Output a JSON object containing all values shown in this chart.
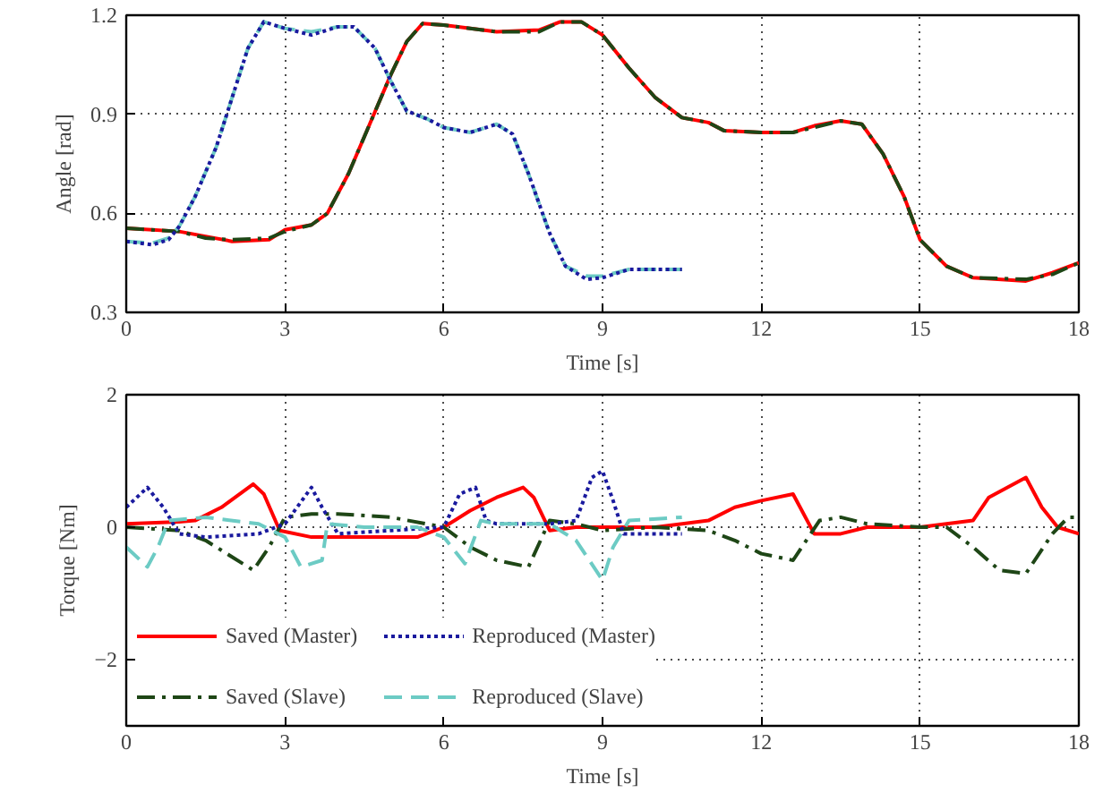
{
  "chart_data": [
    {
      "type": "line",
      "xlabel": "Time [s]",
      "ylabel": "Angle [rad]",
      "xlim": [
        0,
        18
      ],
      "ylim": [
        0.3,
        1.2
      ],
      "xticks": [
        0,
        3,
        6,
        9,
        12,
        15,
        18
      ],
      "yticks": [
        0.3,
        0.6,
        0.9,
        1.2
      ],
      "grid": true,
      "legend": false,
      "series": [
        {
          "color": "#ff0000",
          "line_style": "solid",
          "x": [
            0,
            1,
            1.5,
            2,
            2.7,
            3,
            3.5,
            3.8,
            4.2,
            4.6,
            5,
            5.3,
            5.6,
            6,
            7,
            7.8,
            8.2,
            8.6,
            9,
            9.5,
            10,
            10.5,
            11,
            11.3,
            12,
            12.6,
            13,
            13.5,
            13.9,
            14.3,
            14.7,
            15,
            15.5,
            16,
            17,
            17.5,
            18
          ],
          "values": [
            0.555,
            0.545,
            0.53,
            0.515,
            0.52,
            0.55,
            0.565,
            0.6,
            0.72,
            0.87,
            1.02,
            1.12,
            1.175,
            1.17,
            1.15,
            1.155,
            1.18,
            1.18,
            1.14,
            1.04,
            0.95,
            0.89,
            0.875,
            0.85,
            0.845,
            0.845,
            0.865,
            0.88,
            0.87,
            0.78,
            0.65,
            0.52,
            0.44,
            0.405,
            0.395,
            0.42,
            0.45
          ]
        },
        {
          "color": "#1e4616",
          "line_style": "dashdot",
          "x": [
            0,
            1,
            1.5,
            2,
            2.7,
            3,
            3.5,
            3.8,
            4.2,
            4.6,
            5,
            5.3,
            5.6,
            6,
            7,
            7.8,
            8.2,
            8.6,
            9,
            9.5,
            10,
            10.5,
            11,
            11.3,
            12,
            12.6,
            13,
            13.5,
            13.9,
            14.3,
            14.7,
            15,
            15.5,
            16,
            17,
            17.5,
            18
          ],
          "values": [
            0.555,
            0.545,
            0.525,
            0.52,
            0.525,
            0.545,
            0.565,
            0.6,
            0.72,
            0.87,
            1.02,
            1.12,
            1.175,
            1.17,
            1.15,
            1.15,
            1.18,
            1.18,
            1.14,
            1.04,
            0.95,
            0.89,
            0.875,
            0.85,
            0.845,
            0.845,
            0.86,
            0.88,
            0.87,
            0.78,
            0.65,
            0.52,
            0.44,
            0.405,
            0.4,
            0.415,
            0.45
          ]
        },
        {
          "color": "#6ccbc4",
          "line_style": "dashed",
          "x": [
            0,
            0.5,
            0.8,
            1,
            1.3,
            1.7,
            2,
            2.3,
            2.6,
            3,
            3.5,
            4,
            4.3,
            4.7,
            5,
            5.3,
            5.7,
            6,
            6.5,
            7,
            7.3,
            7.6,
            8,
            8.3,
            8.7,
            9,
            9.5,
            10,
            10.5
          ],
          "values": [
            0.515,
            0.51,
            0.525,
            0.56,
            0.65,
            0.8,
            0.95,
            1.1,
            1.18,
            1.16,
            1.15,
            1.165,
            1.165,
            1.1,
            1.0,
            0.91,
            0.885,
            0.86,
            0.845,
            0.87,
            0.84,
            0.72,
            0.54,
            0.44,
            0.41,
            0.41,
            0.43,
            0.43,
            0.43
          ]
        },
        {
          "color": "#1a1a9e",
          "line_style": "dotted",
          "x": [
            0,
            0.5,
            0.8,
            1,
            1.3,
            1.7,
            2,
            2.3,
            2.6,
            3,
            3.5,
            4,
            4.3,
            4.7,
            5,
            5.3,
            5.7,
            6,
            6.5,
            7,
            7.3,
            7.6,
            8,
            8.3,
            8.7,
            9,
            9.5,
            10,
            10.5
          ],
          "values": [
            0.515,
            0.505,
            0.52,
            0.56,
            0.65,
            0.8,
            0.95,
            1.1,
            1.18,
            1.16,
            1.14,
            1.165,
            1.165,
            1.1,
            1.0,
            0.91,
            0.885,
            0.86,
            0.845,
            0.87,
            0.84,
            0.72,
            0.54,
            0.44,
            0.4,
            0.405,
            0.43,
            0.43,
            0.43
          ]
        }
      ]
    },
    {
      "type": "line",
      "xlabel": "Time [s]",
      "ylabel": "Torque [Nm]",
      "xlim": [
        0,
        18
      ],
      "ylim": [
        -3,
        2
      ],
      "xticks": [
        0,
        3,
        6,
        9,
        12,
        15,
        18
      ],
      "yticks": [
        -2,
        0,
        2
      ],
      "grid": true,
      "legend": "bottom left",
      "series": [
        {
          "name": "Saved (Master)",
          "color": "#ff0000",
          "line_style": "solid",
          "x": [
            0,
            1,
            1.3,
            1.8,
            2.4,
            2.6,
            2.9,
            3.5,
            4.5,
            5.5,
            6,
            6.5,
            7,
            7.5,
            7.7,
            8,
            8.5,
            9,
            10,
            11,
            11.5,
            12,
            12.6,
            13,
            13.5,
            14,
            15,
            15.5,
            16,
            16.3,
            17,
            17.3,
            17.6,
            18
          ],
          "values": [
            0.05,
            0.08,
            0.1,
            0.3,
            0.65,
            0.5,
            -0.05,
            -0.15,
            -0.15,
            -0.15,
            0,
            0.25,
            0.45,
            0.6,
            0.45,
            -0.05,
            0,
            0,
            0,
            0.1,
            0.3,
            0.4,
            0.5,
            -0.1,
            -0.1,
            0,
            0,
            0.05,
            0.1,
            0.45,
            0.75,
            0.3,
            0,
            -0.1
          ]
        },
        {
          "name": "Saved (Slave)",
          "color": "#1e4616",
          "line_style": "dashdot",
          "x": [
            0,
            1,
            1.5,
            2.4,
            2.7,
            3,
            3.5,
            4,
            5,
            6,
            6.5,
            7,
            7.6,
            8,
            8.5,
            9,
            10,
            11,
            11.5,
            12,
            12.6,
            13.1,
            13.5,
            14,
            15,
            15.5,
            16,
            16.5,
            17,
            17.5,
            17.8,
            18
          ],
          "values": [
            0,
            -0.05,
            -0.2,
            -0.65,
            -0.3,
            0.15,
            0.2,
            0.2,
            0.15,
            0,
            -0.3,
            -0.5,
            -0.6,
            0.1,
            0.05,
            -0.05,
            0,
            -0.05,
            -0.2,
            -0.4,
            -0.5,
            0.1,
            0.15,
            0.05,
            0,
            0,
            -0.3,
            -0.65,
            -0.7,
            -0.1,
            0.15,
            0.15
          ]
        },
        {
          "name": "Reproduced (Master)",
          "color": "#1a1a9e",
          "line_style": "dotted",
          "x": [
            0,
            0.4,
            0.7,
            1,
            1.5,
            2.5,
            3,
            3.5,
            3.7,
            4,
            5,
            6,
            6.3,
            6.6,
            6.8,
            7,
            8,
            8.5,
            8.8,
            9,
            9.2,
            9.4,
            10.5
          ],
          "values": [
            0.3,
            0.6,
            0.3,
            -0.1,
            -0.15,
            -0.1,
            0.05,
            0.6,
            0.3,
            -0.1,
            -0.05,
            0,
            0.5,
            0.6,
            0.1,
            0.05,
            0.05,
            0.1,
            0.75,
            0.85,
            0.4,
            -0.1,
            -0.1
          ]
        },
        {
          "name": "Reproduced (Slave)",
          "color": "#6ccbc4",
          "line_style": "dashed",
          "x": [
            0,
            0.4,
            0.6,
            0.8,
            1.5,
            2.5,
            3,
            3.3,
            3.7,
            3.8,
            4.5,
            5.5,
            6,
            6.4,
            6.7,
            7,
            8,
            8.5,
            9,
            9.2,
            9.5,
            10.5
          ],
          "values": [
            -0.3,
            -0.6,
            -0.3,
            0.1,
            0.15,
            0.05,
            -0.15,
            -0.6,
            -0.5,
            0.05,
            0,
            0,
            -0.15,
            -0.55,
            0.1,
            0.05,
            0.05,
            -0.2,
            -0.8,
            -0.3,
            0.1,
            0.15
          ]
        }
      ]
    }
  ]
}
